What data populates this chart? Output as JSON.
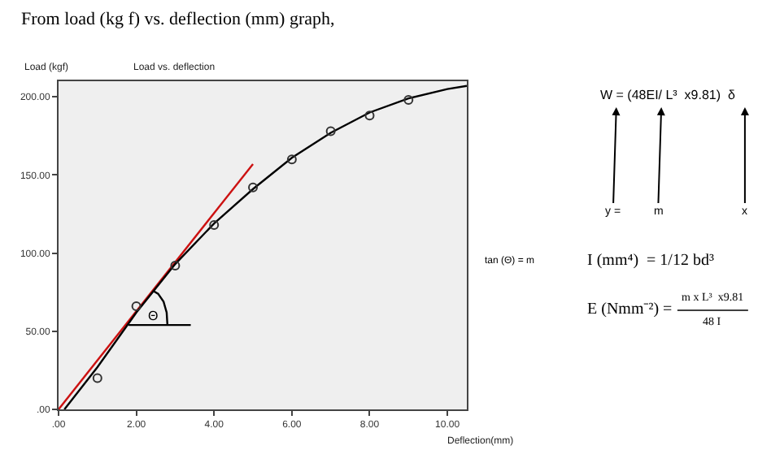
{
  "chart_data": {
    "type": "scatter",
    "title": "From load (kg f) vs. deflection (mm) graph,",
    "subtitle": "Load vs. deflection",
    "xlabel": "Deflection(mm)",
    "ylabel": "Load (kgf)",
    "series": [
      {
        "type": "line",
        "color": "#cc1111",
        "x": [
          0,
          5
        ],
        "values": [
          0,
          157
        ]
      },
      {
        "type": "line",
        "color": "#000000",
        "x": [
          0.15,
          1,
          2,
          3,
          4,
          5,
          6,
          7,
          8,
          9,
          10,
          10.5
        ],
        "values": [
          0,
          27,
          62,
          93,
          119,
          141,
          161,
          177,
          190,
          199,
          205,
          207
        ]
      },
      {
        "type": "line",
        "color": "#000000",
        "x": [
          1.8,
          3.4
        ],
        "values": [
          54,
          54
        ]
      },
      {
        "type": "line",
        "color": "#000000",
        "x": [
          2.8,
          2.78,
          2.7,
          2.56,
          2.42
        ],
        "values": [
          54,
          62,
          69,
          74,
          76
        ]
      },
      {
        "color": "#333333",
        "marker": "circle",
        "x": [
          1,
          2,
          3,
          4,
          5,
          6,
          7,
          8,
          9
        ],
        "values": [
          20,
          66,
          92,
          118,
          142,
          160,
          178,
          188,
          198
        ]
      }
    ],
    "xlim": [
      0,
      10.5
    ],
    "ylim": [
      0,
      210
    ],
    "xticks": [
      {
        "value": 0,
        "label": ".00"
      },
      {
        "value": 2,
        "label": "2.00"
      },
      {
        "value": 4,
        "label": "4.00"
      },
      {
        "value": 6,
        "label": "6.00"
      },
      {
        "value": 8,
        "label": "8.00"
      },
      {
        "value": 10,
        "label": "10.00"
      }
    ],
    "yticks": [
      {
        "value": 0,
        "label": ".00"
      },
      {
        "value": 50,
        "label": "50.00"
      },
      {
        "value": 100,
        "label": "100.00"
      },
      {
        "value": 150,
        "label": "150.00"
      },
      {
        "value": 200,
        "label": "200.00"
      }
    ],
    "grid": false,
    "annotations": [
      "Θ",
      "W = (48EI/ L³  x9.81)  δ",
      "y =",
      "m",
      "x",
      "tan (Θ) = m",
      "I (mm⁴)  = 1/12 bd³",
      "E (Nmm⁻²) =",
      "m x L³  x9.81",
      "48 I"
    ]
  }
}
